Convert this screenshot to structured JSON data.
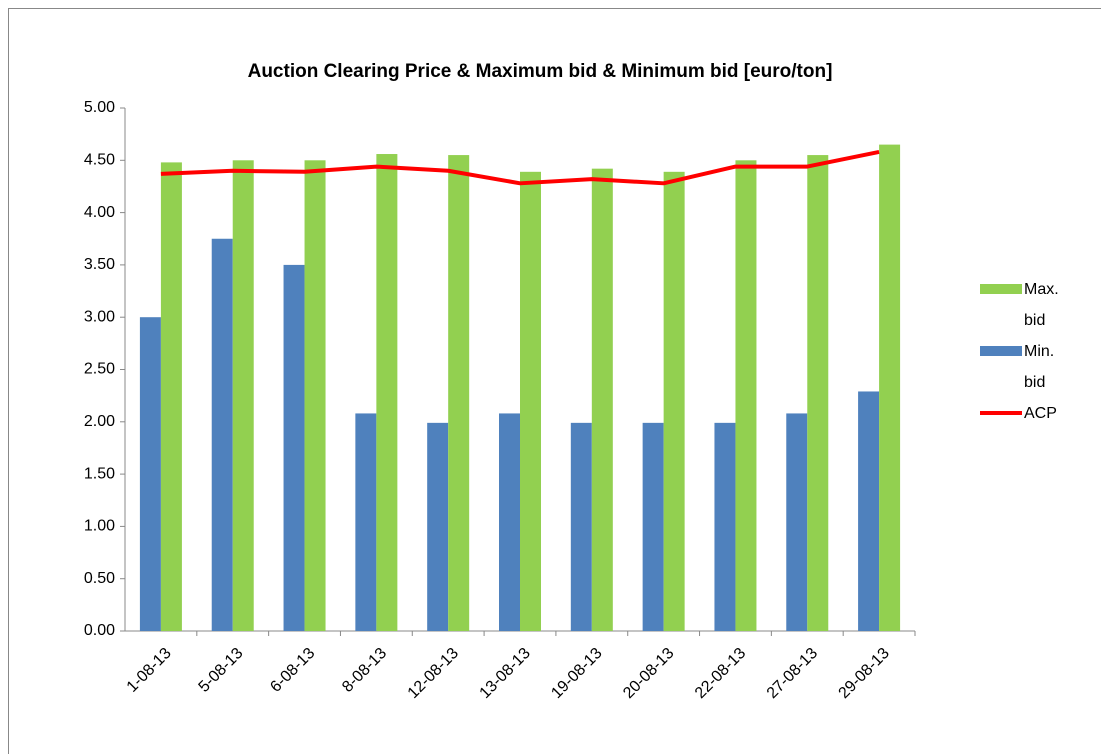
{
  "chart_data": {
    "type": "bar",
    "title": "Auction Clearing Price & Maximum bid  & Minimum bid [euro/ton]",
    "categories": [
      "1-08-13",
      "5-08-13",
      "6-08-13",
      "8-08-13",
      "12-08-13",
      "13-08-13",
      "19-08-13",
      "20-08-13",
      "22-08-13",
      "27-08-13",
      "29-08-13"
    ],
    "series": [
      {
        "name": "Max. bid",
        "type": "bar",
        "color": "#92d050",
        "values": [
          4.48,
          4.5,
          4.5,
          4.56,
          4.55,
          4.39,
          4.42,
          4.39,
          4.5,
          4.55,
          4.65
        ]
      },
      {
        "name": "Min. bid",
        "type": "bar",
        "color": "#4f81bd",
        "values": [
          3.0,
          3.75,
          3.5,
          2.08,
          1.99,
          2.08,
          1.99,
          1.99,
          1.99,
          2.08,
          2.29
        ]
      },
      {
        "name": "ACP",
        "type": "line",
        "color": "#ff0000",
        "values": [
          4.37,
          4.4,
          4.39,
          4.44,
          4.4,
          4.28,
          4.32,
          4.28,
          4.44,
          4.44,
          4.58
        ]
      }
    ],
    "ylim": [
      0,
      5
    ],
    "yticks": [
      {
        "value": 0,
        "label": "0.00"
      },
      {
        "value": 0.5,
        "label": "0.50"
      },
      {
        "value": 1,
        "label": "1.00"
      },
      {
        "value": 1.5,
        "label": "1.50"
      },
      {
        "value": 2,
        "label": "2.00"
      },
      {
        "value": 2.5,
        "label": "2.50"
      },
      {
        "value": 3,
        "label": "3.00"
      },
      {
        "value": 3.5,
        "label": "3.50"
      },
      {
        "value": 4,
        "label": "4.00"
      },
      {
        "value": 4.5,
        "label": "4.50"
      },
      {
        "value": 5,
        "label": "5.00"
      }
    ],
    "grid": false,
    "legend": "right"
  }
}
